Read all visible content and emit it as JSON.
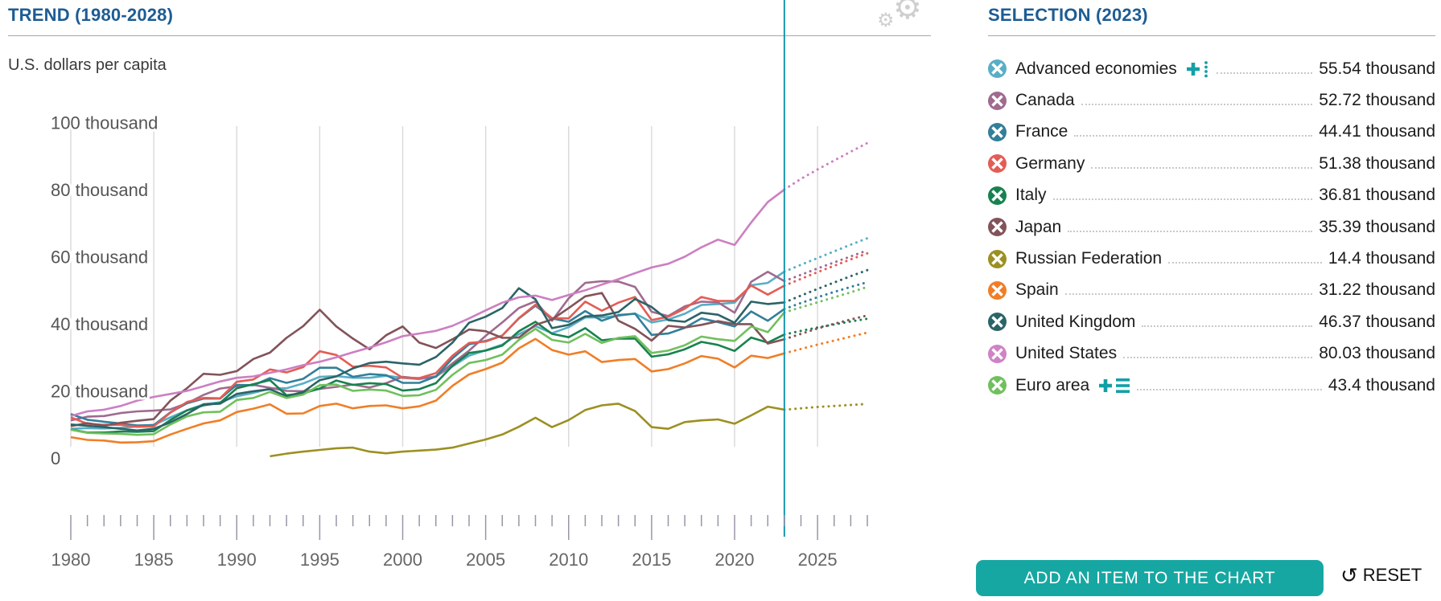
{
  "header": {
    "trend_title": "TREND (1980-2028)",
    "unit_label": "U.S. dollars per capita"
  },
  "selection": {
    "title": "SELECTION (2023)",
    "items": [
      {
        "label": "Advanced economies",
        "color": "#58aec5",
        "value_label": "55.54 thousand",
        "extra_icon": "plus-dotted"
      },
      {
        "label": "Canada",
        "color": "#9f6b8f",
        "value_label": "52.72 thousand",
        "extra_icon": ""
      },
      {
        "label": "France",
        "color": "#337f99",
        "value_label": "44.41 thousand",
        "extra_icon": ""
      },
      {
        "label": "Germany",
        "color": "#e35d55",
        "value_label": "51.38 thousand",
        "extra_icon": ""
      },
      {
        "label": "Italy",
        "color": "#17824e",
        "value_label": "36.81 thousand",
        "extra_icon": ""
      },
      {
        "label": "Japan",
        "color": "#825359",
        "value_label": "35.39 thousand",
        "extra_icon": ""
      },
      {
        "label": "Russian Federation",
        "color": "#9c9021",
        "value_label": "14.4 thousand",
        "extra_icon": ""
      },
      {
        "label": "Spain",
        "color": "#f07e26",
        "value_label": "31.22 thousand",
        "extra_icon": ""
      },
      {
        "label": "United Kingdom",
        "color": "#2b6467",
        "value_label": "46.37 thousand",
        "extra_icon": ""
      },
      {
        "label": "United States",
        "color": "#cf82c5",
        "value_label": "80.03 thousand",
        "extra_icon": ""
      },
      {
        "label": "Euro area",
        "color": "#70c05d",
        "value_label": "43.4 thousand",
        "extra_icon": "plus-bars"
      }
    ]
  },
  "controls": {
    "add_button_label": "ADD AN ITEM TO THE CHART",
    "reset_label": "RESET"
  },
  "colors": {
    "title_blue": "#1d5c94",
    "accent_teal": "#12a0a6",
    "selection_line": "#1a96ae",
    "grid": "#d9d9d9",
    "tick": "#9b94a9",
    "axis_text": "#666666",
    "button_bg": "#17a7a2"
  },
  "chart_data": {
    "type": "line",
    "title": "TREND (1980-2028)",
    "ylabel": "U.S. dollars per capita",
    "unit": "thousand U.S. dollars",
    "x_range": [
      1980,
      2028
    ],
    "selection_year": 2023,
    "forecast_from": 2023,
    "grid_years": [
      1980,
      1985,
      1990,
      1995,
      2000,
      2005,
      2010,
      2015,
      2020,
      2025
    ],
    "x_tick_labels": [
      1980,
      1985,
      1990,
      1995,
      2000,
      2005,
      2010,
      2015,
      2020,
      2025
    ],
    "y_ticks": [
      {
        "value": 0,
        "label": "0"
      },
      {
        "value": 20,
        "label": "20 thousand"
      },
      {
        "value": 40,
        "label": "40 thousand"
      },
      {
        "value": 60,
        "label": "60 thousand"
      },
      {
        "value": 80,
        "label": "80 thousand"
      },
      {
        "value": 100,
        "label": "100 thousand"
      }
    ],
    "legend_position": "right",
    "grid": "vertical-only",
    "series": [
      {
        "name": "Advanced economies",
        "color": "#58aec5",
        "values": [
          8.7,
          8.9,
          8.8,
          9,
          9.4,
          9.9,
          12.1,
          14.2,
          16,
          16.6,
          18.4,
          19.4,
          20.7,
          20.8,
          22.2,
          24.2,
          24.4,
          23.9,
          23.9,
          24.5,
          23.9,
          23.5,
          24.4,
          27.3,
          30.5,
          32.1,
          33.8,
          36.9,
          39.3,
          37.2,
          39,
          41.9,
          41.9,
          42.4,
          43.1,
          40.4,
          41.3,
          43,
          45.6,
          45.9,
          46.3,
          51.5,
          52.2,
          55.54,
          57.6,
          59.6,
          61.6,
          63.6,
          65.5
        ]
      },
      {
        "name": "Canada",
        "color": "#9f6b8f",
        "values": [
          11.2,
          12.3,
          12.5,
          13.4,
          13.9,
          14.1,
          14.5,
          16.3,
          18.8,
          20.7,
          21.4,
          21.8,
          20.9,
          20,
          19.9,
          20.6,
          21.2,
          21.9,
          21,
          22.3,
          24.2,
          23.7,
          24.2,
          28.2,
          32,
          36.4,
          40.4,
          44.7,
          46.7,
          40.9,
          47.6,
          52.2,
          52.7,
          52.6,
          51,
          43.6,
          42.3,
          45.2,
          46.6,
          46.4,
          43.3,
          52.5,
          55.5,
          52.72,
          54.6,
          56.5,
          58.3,
          60.1,
          61.9
        ]
      },
      {
        "name": "France",
        "color": "#337f99",
        "values": [
          13.1,
          11.4,
          10.8,
          10.3,
          9.7,
          9.8,
          13.6,
          16.3,
          17.7,
          17.7,
          21.8,
          21.7,
          23.8,
          22.4,
          23.6,
          26.9,
          26.9,
          24.2,
          25,
          24.7,
          22.4,
          22.4,
          24.3,
          29.7,
          33.9,
          34.9,
          36.5,
          41.6,
          45.4,
          41.6,
          40.6,
          43.8,
          40.9,
          42.6,
          43,
          36.7,
          37.1,
          38.8,
          41.6,
          40.5,
          39.2,
          43.7,
          40.9,
          44.41,
          46.2,
          47.9,
          49.5,
          51,
          52.4
        ]
      },
      {
        "name": "Germany",
        "color": "#e35d55",
        "values": [
          12.1,
          10.2,
          9.9,
          9.9,
          9.3,
          9.4,
          13.5,
          16.7,
          17.9,
          17.8,
          22.7,
          23.4,
          26.4,
          25.5,
          27.1,
          31.8,
          30.7,
          27.2,
          27.5,
          27,
          23.9,
          23.8,
          25.3,
          30.5,
          34.3,
          34.7,
          36.5,
          41.7,
          45.7,
          41.7,
          41.6,
          46.6,
          43.9,
          46.3,
          48,
          41.1,
          42.1,
          44.5,
          48,
          46.8,
          46.8,
          51.4,
          48.7,
          51.38,
          53.4,
          55.4,
          57.3,
          59.2,
          61
        ]
      },
      {
        "name": "Italy",
        "color": "#17824e",
        "values": [
          8.5,
          7.6,
          7.6,
          7.9,
          7.8,
          8,
          11.3,
          14.2,
          15.7,
          16.4,
          20.8,
          22,
          23.2,
          18.7,
          19.3,
          20.7,
          23.1,
          21.8,
          22.3,
          22,
          20.1,
          20.5,
          22.3,
          27.5,
          31.3,
          32,
          33.5,
          37.8,
          40.6,
          37,
          36,
          38.7,
          35.1,
          35.6,
          35.6,
          30.2,
          30.9,
          32.4,
          34.6,
          33.7,
          31.9,
          35.9,
          34.4,
          36.81,
          37.9,
          38.9,
          39.8,
          40.7,
          41.5
        ]
      },
      {
        "name": "Japan",
        "color": "#825359",
        "values": [
          9.5,
          10.4,
          9.6,
          10.5,
          11.1,
          11.6,
          17.1,
          20.8,
          25.1,
          24.8,
          25.9,
          29.5,
          31.4,
          35.8,
          39.3,
          44.2,
          39.2,
          35.6,
          32.4,
          36.6,
          39.2,
          34.4,
          32.8,
          35.4,
          38.3,
          37.8,
          35.8,
          35.9,
          39.7,
          41.3,
          44.7,
          48.2,
          49.2,
          40.9,
          38.5,
          35,
          39.4,
          38.9,
          39.7,
          40.8,
          39.9,
          39.9,
          34.1,
          35.39,
          37,
          38.6,
          40,
          41.3,
          42.5
        ]
      },
      {
        "name": "Russian Federation",
        "color": "#9c9021",
        "values": [
          null,
          null,
          null,
          null,
          null,
          null,
          null,
          null,
          null,
          null,
          null,
          null,
          0.5,
          1.3,
          1.9,
          2.4,
          2.9,
          3.1,
          1.9,
          1.4,
          1.9,
          2.2,
          2.5,
          3.1,
          4.3,
          5.5,
          7,
          9.3,
          12,
          9.2,
          11.3,
          14.3,
          15.7,
          16.2,
          14,
          9.2,
          8.7,
          10.7,
          11.2,
          11.5,
          10.2,
          12.7,
          15.3,
          14.4,
          14.8,
          15.2,
          15.5,
          15.8,
          16.1
        ]
      },
      {
        "name": "Spain",
        "color": "#f07e26",
        "values": [
          6.2,
          5.4,
          5.2,
          4.6,
          4.7,
          5,
          7,
          8.7,
          10.3,
          11.2,
          13.7,
          14.7,
          16,
          13.2,
          13.3,
          15.5,
          16.2,
          14.8,
          15.5,
          15.7,
          14.8,
          15.4,
          17.1,
          21.5,
          24.9,
          26.5,
          28.4,
          32.7,
          35.5,
          32.2,
          30.8,
          31.8,
          28.6,
          29.2,
          29.5,
          25.8,
          26.5,
          28.2,
          30.4,
          29.6,
          27,
          30.5,
          29.8,
          31.22,
          32.5,
          33.8,
          35,
          36.2,
          37.4
        ]
      },
      {
        "name": "United Kingdom",
        "color": "#2b6467",
        "values": [
          10,
          9.6,
          9.2,
          8.7,
          8.2,
          8.7,
          10.6,
          13.1,
          16,
          16.2,
          19.1,
          19.9,
          20.5,
          18.4,
          19.7,
          23.2,
          24.3,
          26.7,
          28.3,
          28.7,
          28.2,
          27.8,
          30.1,
          34.4,
          40.3,
          42.1,
          44.7,
          50.6,
          47.3,
          38.7,
          39.7,
          42.2,
          42.5,
          43.5,
          47.4,
          45,
          41.1,
          40.6,
          43.3,
          42.7,
          40.3,
          46.6,
          45.9,
          46.37,
          48.4,
          50.4,
          52.3,
          54.2,
          56
        ]
      },
      {
        "name": "Euro area",
        "color": "#70c05d",
        "values": [
          8.4,
          7.5,
          7.3,
          7.2,
          6.9,
          7.1,
          10,
          12.4,
          13.6,
          13.8,
          17.3,
          17.9,
          19.7,
          17.9,
          18.9,
          21.7,
          21.9,
          20,
          20.4,
          20.1,
          18.5,
          18.7,
          20.3,
          24.8,
          28.3,
          29.2,
          30.8,
          35.2,
          38.5,
          35.2,
          34.4,
          37,
          34.3,
          35.8,
          36.3,
          31.3,
          32,
          33.6,
          36.2,
          35.4,
          34.9,
          39.2,
          37.5,
          43.4,
          44.9,
          46.4,
          47.9,
          49.4,
          51
        ]
      },
      {
        "name": "United States",
        "color": "#cc7fc2",
        "values": [
          12.5,
          13.9,
          14.4,
          15.5,
          17.1,
          18.2,
          19.1,
          20,
          21.4,
          22.8,
          23.9,
          24.3,
          25.4,
          26.4,
          27.7,
          28.7,
          30,
          31.5,
          32.9,
          34.5,
          36.3,
          37.1,
          37.9,
          39.4,
          41.6,
          44,
          46.3,
          47.9,
          48.4,
          47.1,
          48.6,
          50,
          51.7,
          53.3,
          55.1,
          56.8,
          57.9,
          60,
          62.8,
          65.1,
          63.5,
          70.2,
          76.3,
          80.03,
          83.2,
          86,
          88.7,
          91.3,
          93.9
        ]
      }
    ]
  }
}
